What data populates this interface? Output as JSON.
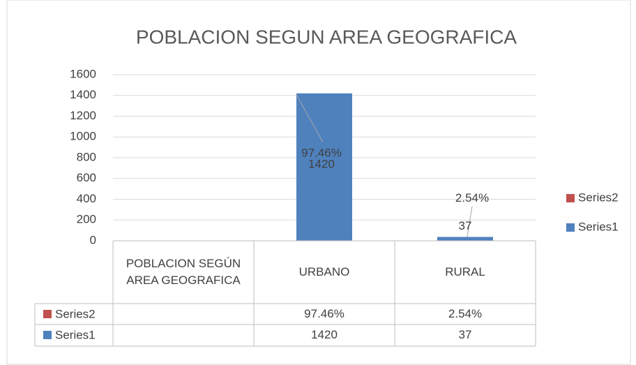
{
  "chart_data": {
    "type": "bar",
    "title": "POBLACION SEGUN AREA GEOGRAFICA",
    "categories": [
      "POBLACION SEGÚN AREA GEOGRAFICA",
      "URBANO",
      "RURAL"
    ],
    "series": [
      {
        "name": "Series2",
        "color": "#c0504d",
        "values": [
          null,
          97.46,
          2.54
        ],
        "value_labels": [
          null,
          "97.46%",
          "2.54%"
        ]
      },
      {
        "name": "Series1",
        "color": "#4f81bd",
        "values": [
          null,
          1420,
          37
        ]
      }
    ],
    "ylim": [
      0,
      1600
    ],
    "yticks": [
      0,
      200,
      400,
      600,
      800,
      1000,
      1200,
      1400,
      1600
    ],
    "grid": true,
    "legend": "right",
    "data_table": true
  }
}
